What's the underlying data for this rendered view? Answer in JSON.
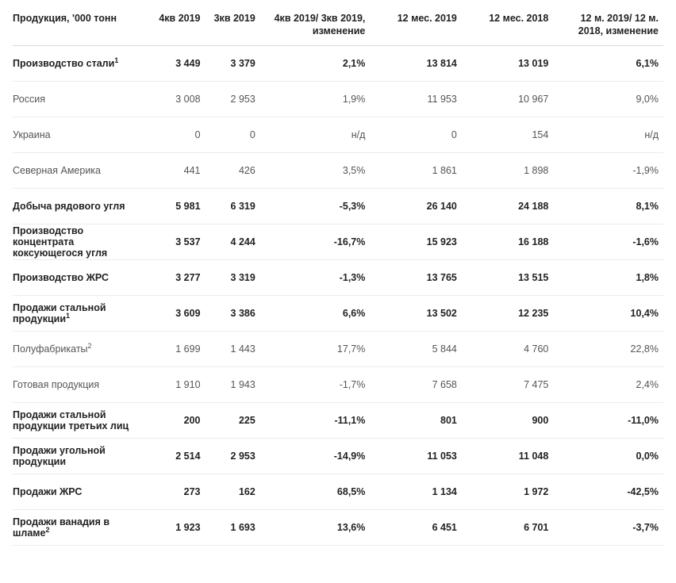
{
  "table": {
    "columns": [
      {
        "key": "label",
        "header": "Продукция, '000 тонн",
        "class": "c-label",
        "align": "left"
      },
      {
        "key": "q4",
        "header": "4кв 2019",
        "class": "c-q",
        "align": "right"
      },
      {
        "key": "q3",
        "header": "3кв 2019",
        "class": "c-q",
        "align": "right"
      },
      {
        "key": "qchg",
        "header": "4кв 2019/ 3кв 2019, изменение",
        "class": "c-chg",
        "align": "right"
      },
      {
        "key": "y19",
        "header": "12 мес. 2019",
        "class": "c-y",
        "align": "right"
      },
      {
        "key": "y18",
        "header": "12 мес. 2018",
        "class": "c-y",
        "align": "right"
      },
      {
        "key": "ychg",
        "header": "12 м. 2019/ 12 м. 2018, изменение",
        "class": "c-chg",
        "align": "right"
      }
    ],
    "rows": [
      {
        "bold": true,
        "label": "Производство стали",
        "sup": "1",
        "q4": "3 449",
        "q3": "3 379",
        "qchg": "2,1%",
        "y19": "13 814",
        "y18": "13 019",
        "ychg": "6,1%"
      },
      {
        "bold": false,
        "label": "Россия",
        "q4": "3 008",
        "q3": "2 953",
        "qchg": "1,9%",
        "y19": "11 953",
        "y18": "10 967",
        "ychg": "9,0%"
      },
      {
        "bold": false,
        "label": "Украина",
        "q4": "0",
        "q3": "0",
        "qchg": "н/д",
        "y19": "0",
        "y18": "154",
        "ychg": "н/д"
      },
      {
        "bold": false,
        "label": "Северная Америка",
        "q4": "441",
        "q3": "426",
        "qchg": "3,5%",
        "y19": "1 861",
        "y18": "1 898",
        "ychg": "-1,9%"
      },
      {
        "bold": true,
        "label": "Добыча рядового угля",
        "q4": "5 981",
        "q3": "6 319",
        "qchg": "-5,3%",
        "y19": "26 140",
        "y18": "24 188",
        "ychg": "8,1%"
      },
      {
        "bold": true,
        "label": "Производство концентрата коксующегося угля",
        "q4": "3 537",
        "q3": "4 244",
        "qchg": "-16,7%",
        "y19": "15 923",
        "y18": "16 188",
        "ychg": "-1,6%"
      },
      {
        "bold": true,
        "label": "Производство ЖРС",
        "q4": "3 277",
        "q3": "3 319",
        "qchg": "-1,3%",
        "y19": "13 765",
        "y18": "13 515",
        "ychg": "1,8%"
      },
      {
        "bold": true,
        "label": "Продажи стальной продукции",
        "sup": "1",
        "q4": "3 609",
        "q3": "3 386",
        "qchg": "6,6%",
        "y19": "13 502",
        "y18": "12 235",
        "ychg": "10,4%"
      },
      {
        "bold": false,
        "label": "Полуфабрикаты",
        "sup": "2",
        "q4": "1 699",
        "q3": "1 443",
        "qchg": "17,7%",
        "y19": "5 844",
        "y18": "4 760",
        "ychg": "22,8%"
      },
      {
        "bold": false,
        "label": "Готовая продукция",
        "q4": "1 910",
        "q3": "1 943",
        "qchg": "-1,7%",
        "y19": "7 658",
        "y18": "7 475",
        "ychg": "2,4%"
      },
      {
        "bold": true,
        "label": "Продажи стальной продукции третьих лиц",
        "q4": "200",
        "q3": "225",
        "qchg": "-11,1%",
        "y19": "801",
        "y18": "900",
        "ychg": "-11,0%"
      },
      {
        "bold": true,
        "label": "Продажи угольной продукции",
        "q4": "2 514",
        "q3": "2 953",
        "qchg": "-14,9%",
        "y19": "11 053",
        "y18": "11 048",
        "ychg": "0,0%"
      },
      {
        "bold": true,
        "label": "Продажи ЖРС",
        "q4": "273",
        "q3": "162",
        "qchg": "68,5%",
        "y19": "1 134",
        "y18": "1 972",
        "ychg": "-42,5%"
      },
      {
        "bold": true,
        "label": "Продажи ванадия в шламе",
        "sup": "2",
        "q4": "1 923",
        "q3": "1 693",
        "qchg": "13,6%",
        "y19": "6 451",
        "y18": "6 701",
        "ychg": "-3,7%"
      }
    ]
  }
}
